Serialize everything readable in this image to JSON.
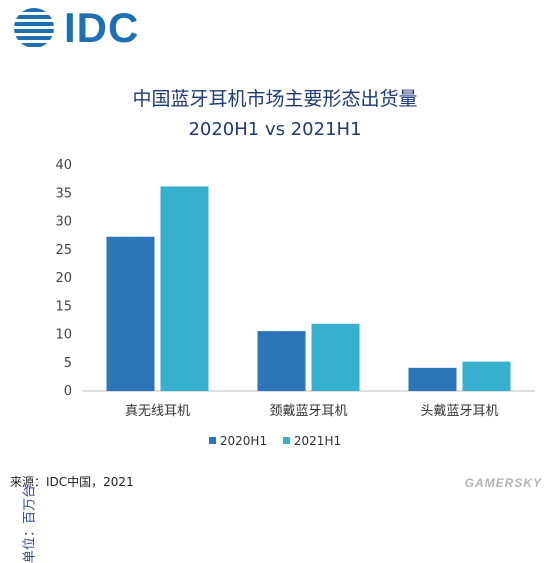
{
  "brand": {
    "logo_text": "IDC"
  },
  "chart_data": {
    "type": "bar",
    "title": "中国蓝牙耳机市场主要形态出货量",
    "subtitle": "2020H1 vs 2021H1",
    "ylabel": "单位：百万台",
    "xlabel": "",
    "ylim": [
      0,
      40
    ],
    "yticks": [
      0,
      5,
      10,
      15,
      20,
      25,
      30,
      35,
      40
    ],
    "categories": [
      "真无线耳机",
      "颈戴蓝牙耳机",
      "头戴蓝牙耳机"
    ],
    "series": [
      {
        "name": "2020H1",
        "color": "#2b75b8",
        "values": [
          27.3,
          10.6,
          4.1
        ]
      },
      {
        "name": "2021H1",
        "color": "#36b0cc",
        "values": [
          36.2,
          11.9,
          5.2
        ]
      }
    ],
    "legend_position": "bottom",
    "grid": false
  },
  "source_text": "来源：IDC中国，2021",
  "watermark_text": "GAMERSKY",
  "colors": {
    "title": "#1e3a7a",
    "axis_label": "#2d4a9a",
    "logo": "#1f6fb3"
  }
}
